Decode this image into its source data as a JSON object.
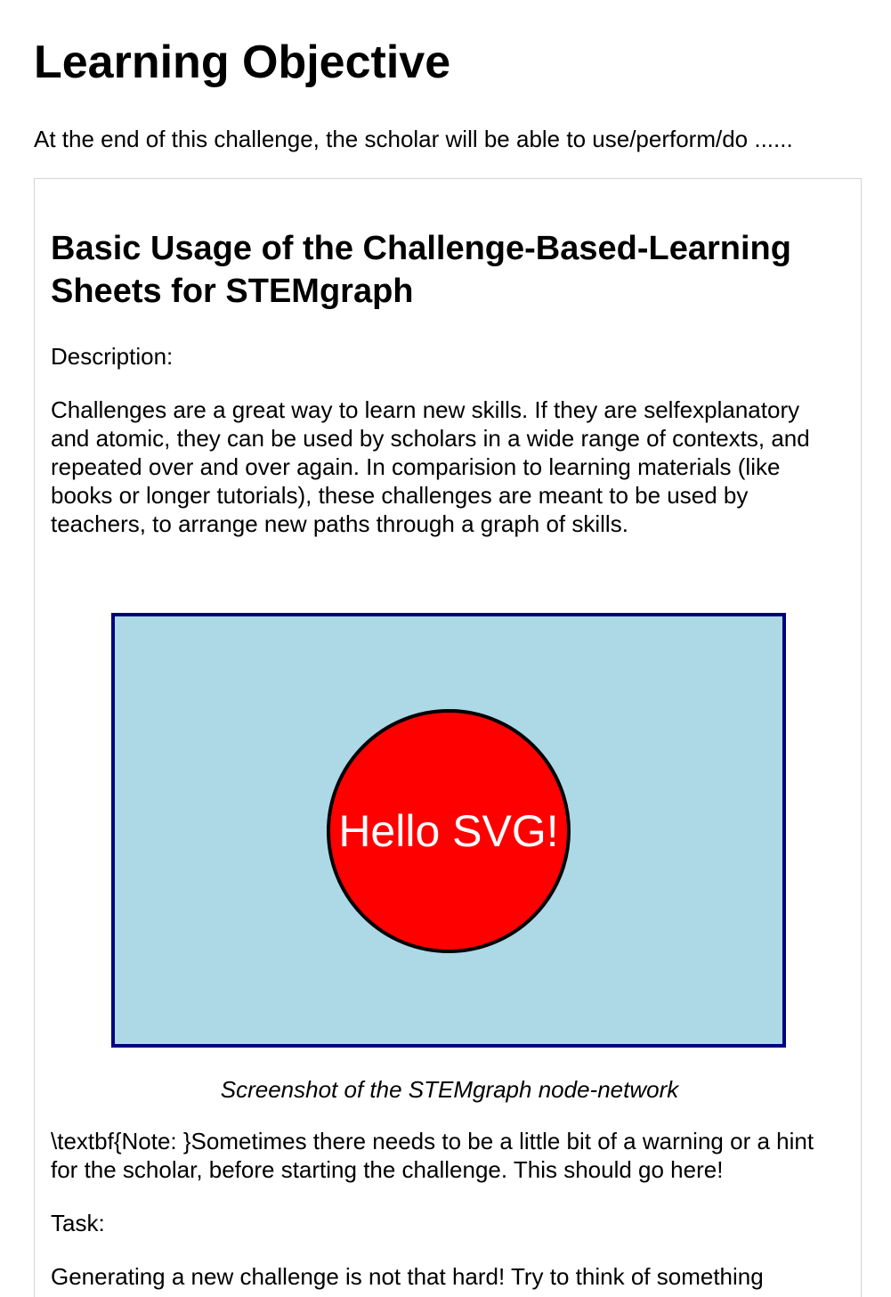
{
  "header": {
    "title": "Learning Objective",
    "objective": "At the end of this challenge, the scholar will be able to use/perform/do ......"
  },
  "card": {
    "title": "Basic Usage of the Challenge-Based-Learning Sheets for STEMgraph",
    "description_label": "Description:",
    "description_text": "Challenges are a great way to learn new skills. If they are selfexplanatory and atomic, they can be used by scholars in a wide range of contexts, and repeated over and over again. In comparision to learning materials (like books or longer tutorials), these challenges are meant to be used by teachers, to arrange new paths through a graph of skills.",
    "figure": {
      "text": "Hello SVG!",
      "background_color": "#add8e6",
      "border_color": "#000080",
      "circle_color": "#ff0000",
      "circle_stroke": "#000000",
      "text_color": "#ffffff"
    },
    "caption": "Screenshot of the STEMgraph node-network",
    "note": "\\textbf{Note: }Sometimes there needs to be a little bit of a warning or a hint for the scholar, before starting the challenge. This should go here!",
    "task_label": "Task:",
    "task_text": "Generating a new challenge is not that hard! Try to think of something"
  }
}
